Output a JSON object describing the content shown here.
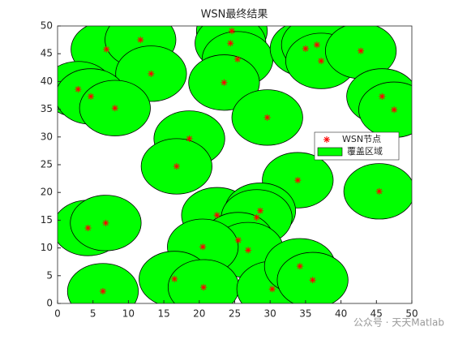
{
  "chart_data": {
    "type": "scatter",
    "title": "WSN最终结果",
    "x": [
      6.9,
      11.7,
      13.2,
      2.9,
      4.7,
      8.1,
      24.6,
      24.4,
      25.4,
      23.5,
      29.6,
      35.0,
      36.6,
      37.2,
      42.8,
      45.8,
      47.5,
      18.6,
      16.8,
      33.9,
      45.4,
      4.3,
      6.8,
      22.5,
      28.6,
      28.1,
      25.5,
      26.9,
      20.5,
      16.5,
      20.6,
      6.4,
      30.3,
      34.2,
      36.0
    ],
    "y": [
      45.8,
      47.5,
      41.4,
      38.6,
      37.3,
      35.2,
      49.1,
      46.9,
      44.0,
      39.8,
      33.5,
      45.9,
      46.6,
      43.7,
      45.5,
      37.3,
      34.9,
      29.7,
      24.7,
      22.2,
      20.2,
      13.6,
      14.5,
      15.9,
      16.7,
      15.5,
      11.4,
      9.6,
      10.2,
      4.4,
      2.9,
      2.2,
      2.6,
      6.7,
      4.2
    ],
    "radius": 5,
    "node_name": "WSN节点",
    "node_color": "#ff0000",
    "area_name": "覆盖区域",
    "area_color": "#00ff00",
    "xlim": [
      0,
      50
    ],
    "ylim": [
      0,
      50
    ],
    "xticks": [
      0,
      5,
      10,
      15,
      20,
      25,
      30,
      35,
      40,
      45,
      50
    ],
    "yticks": [
      0,
      5,
      10,
      15,
      20,
      25,
      30,
      35,
      40,
      45,
      50
    ],
    "legend": "east",
    "watermark": "公众号 · 天天Matlab"
  }
}
